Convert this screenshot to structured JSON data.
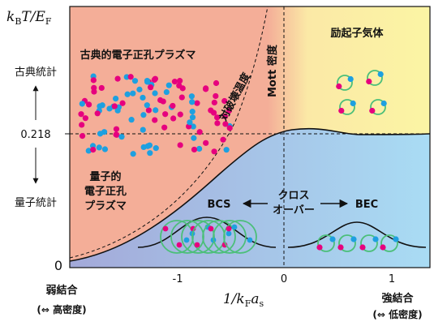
{
  "y_axis": {
    "label": [
      "k",
      "B",
      "T/E",
      "F"
    ],
    "ticks": [
      "0.218",
      "0"
    ],
    "upper_note": "古典統計",
    "lower_note": "量子統計"
  },
  "x_axis": {
    "label": [
      "1/k",
      "F",
      "a",
      "s"
    ],
    "ticks": [
      "-1",
      "0",
      "1"
    ],
    "left_note": "弱結合",
    "left_sub": "(⇔ 高密度)",
    "right_note": "強結合",
    "right_sub": "(⇔ 低密度)"
  },
  "regions": {
    "classical": "古典的電子正孔プラズマ",
    "pair_breaking": "対破壊温度",
    "mott": "Mott 密度",
    "exciton": "励起子気体",
    "quantum": [
      "量子的",
      "電子正孔",
      "プラズマ"
    ],
    "bcs": "BCS",
    "crossover": [
      "クロス",
      "オーバー"
    ],
    "bec": "BEC"
  }
}
